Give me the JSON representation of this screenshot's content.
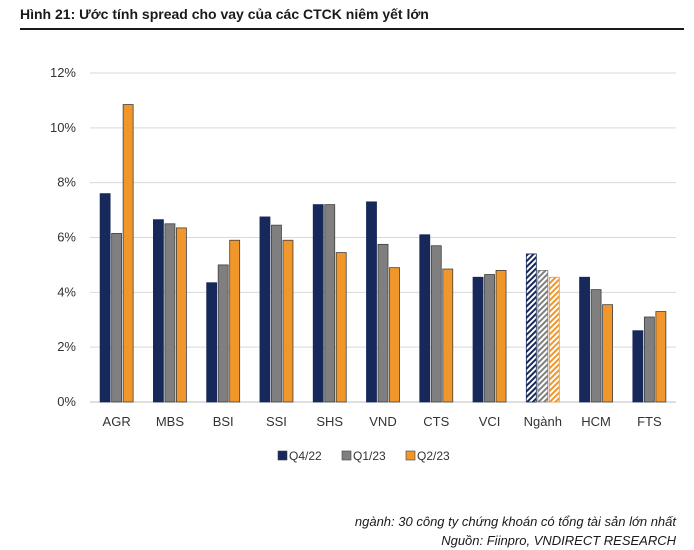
{
  "title": "Hình 21: Ước tính spread cho vay của các CTCK niêm yết lớn",
  "footnote": "ngành: 30 công ty chứng khoán có tổng tài sản lớn nhất",
  "source": "Nguồn: Fiinpro, VNDIRECT RESEARCH",
  "colors": {
    "q4_22": "#17285a",
    "q1_23": "#7f7f7f",
    "q2_23": "#f0962a",
    "grid": "#d9d9d9",
    "axis": "#bfbfbf"
  },
  "chart_data": {
    "type": "bar",
    "title": "Ước tính spread cho vay của các CTCK niêm yết lớn",
    "xlabel": "",
    "ylabel": "",
    "ylim": [
      0,
      12
    ],
    "yticks": [
      0,
      2,
      4,
      6,
      8,
      10,
      12
    ],
    "ytick_labels": [
      "0%",
      "2%",
      "4%",
      "6%",
      "8%",
      "10%",
      "12%"
    ],
    "grid": true,
    "legend_position": "bottom-center",
    "categories": [
      "AGR",
      "MBS",
      "BSI",
      "SSI",
      "SHS",
      "VND",
      "CTS",
      "VCI",
      "Ngành",
      "HCM",
      "FTS"
    ],
    "hatched_category": "Ngành",
    "series": [
      {
        "name": "Q4/22",
        "color": "#17285a",
        "values": [
          7.6,
          6.65,
          4.35,
          6.75,
          7.2,
          7.3,
          6.1,
          4.55,
          5.4,
          4.55,
          2.6
        ]
      },
      {
        "name": "Q1/23",
        "color": "#7f7f7f",
        "values": [
          6.15,
          6.5,
          5.0,
          6.45,
          7.2,
          5.75,
          5.7,
          4.65,
          4.8,
          4.1,
          3.1
        ]
      },
      {
        "name": "Q2/23",
        "color": "#f0962a",
        "values": [
          10.85,
          6.35,
          5.9,
          5.9,
          5.45,
          4.9,
          4.85,
          4.8,
          4.55,
          3.55,
          3.3
        ]
      }
    ]
  }
}
